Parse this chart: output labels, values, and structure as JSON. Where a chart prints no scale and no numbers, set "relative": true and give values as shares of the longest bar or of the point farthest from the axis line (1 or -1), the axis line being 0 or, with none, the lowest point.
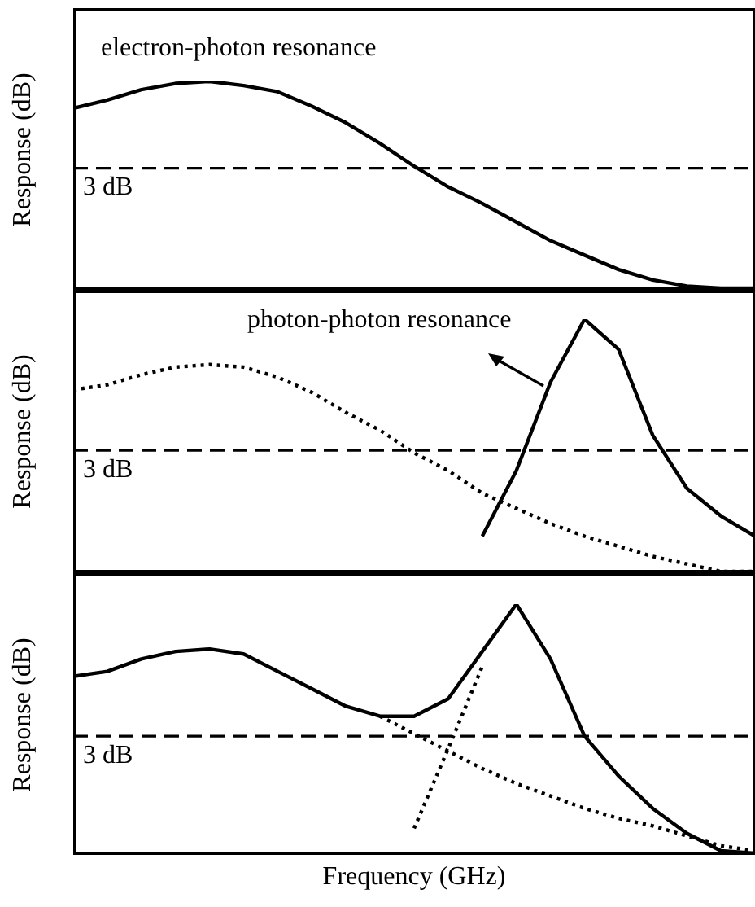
{
  "chart_data": [
    {
      "type": "line",
      "relative": true,
      "ylabel": "Response (dB)",
      "annotations": [
        "electron-photon resonance"
      ],
      "categories": [
        null,
        null,
        null,
        null,
        null,
        null,
        null,
        null,
        null,
        null,
        null,
        null,
        null,
        null,
        null,
        null,
        null,
        null,
        null,
        null,
        null
      ],
      "series": [
        {
          "color": "#000000",
          "line_style": "solid",
          "values": [
            0.87,
            0.91,
            0.96,
            0.99,
            1,
            0.98,
            0.95,
            0.88,
            0.8,
            0.7,
            0.59,
            0.49,
            0.41,
            0.32,
            0.23,
            0.16,
            0.09,
            0.04,
            0.01,
            0,
            0
          ]
        }
      ],
      "ref_lines": [
        {
          "axis": "y",
          "value": 0.58,
          "label": "3 dB",
          "line_style": "dashed",
          "color": "#000000"
        }
      ]
    },
    {
      "type": "line",
      "relative": true,
      "ylabel": "Response (dB)",
      "annotations": [
        "photon-photon resonance"
      ],
      "categories": [
        null,
        null,
        null,
        null,
        null,
        null,
        null,
        null,
        null,
        null,
        null,
        null,
        null,
        null,
        null,
        null,
        null,
        null,
        null,
        null,
        null
      ],
      "series": [
        {
          "color": "#000000",
          "line_style": "dotted",
          "values": [
            0.72,
            0.74,
            0.78,
            0.81,
            0.82,
            0.81,
            0.77,
            0.71,
            0.63,
            0.56,
            0.47,
            0.4,
            0.31,
            0.25,
            0.19,
            0.14,
            0.1,
            0.06,
            0.03,
            0,
            0
          ]
        },
        {
          "color": "#000000",
          "line_style": "solid",
          "values": [
            null,
            null,
            null,
            null,
            null,
            null,
            null,
            null,
            null,
            null,
            null,
            null,
            0.14,
            0.4,
            0.75,
            1,
            0.88,
            0.54,
            0.33,
            0.22,
            0.14
          ]
        }
      ],
      "ref_lines": [
        {
          "axis": "y",
          "value": 0.48,
          "label": "3 dB",
          "line_style": "dashed",
          "color": "#000000"
        }
      ]
    },
    {
      "type": "line",
      "relative": true,
      "ylabel": "Response (dB)",
      "xlabel": "Frequency (GHz)",
      "categories": [
        null,
        null,
        null,
        null,
        null,
        null,
        null,
        null,
        null,
        null,
        null,
        null,
        null,
        null,
        null,
        null,
        null,
        null,
        null,
        null,
        null
      ],
      "series": [
        {
          "color": "#000000",
          "line_style": "solid",
          "values": [
            0.71,
            0.73,
            0.78,
            0.81,
            0.82,
            0.8,
            0.73,
            0.66,
            0.59,
            0.55,
            0.55,
            0.62,
            0.81,
            1,
            0.78,
            0.47,
            0.31,
            0.18,
            0.08,
            0.01,
            0
          ]
        },
        {
          "color": "#000000",
          "line_style": "dotted",
          "values": [
            null,
            null,
            null,
            null,
            null,
            null,
            null,
            null,
            null,
            0.55,
            0.48,
            0.41,
            0.34,
            0.28,
            0.23,
            0.18,
            0.14,
            0.11,
            0.07,
            0.03,
            0.01
          ]
        },
        {
          "color": "#000000",
          "line_style": "dotted",
          "values": [
            null,
            null,
            null,
            null,
            null,
            null,
            null,
            null,
            null,
            null,
            0.1,
            0.42,
            0.75,
            null,
            null,
            null,
            null,
            null,
            null,
            null,
            null
          ]
        }
      ],
      "ref_lines": [
        {
          "axis": "y",
          "value": 0.47,
          "label": "3 dB",
          "line_style": "dashed",
          "color": "#000000"
        }
      ]
    }
  ]
}
